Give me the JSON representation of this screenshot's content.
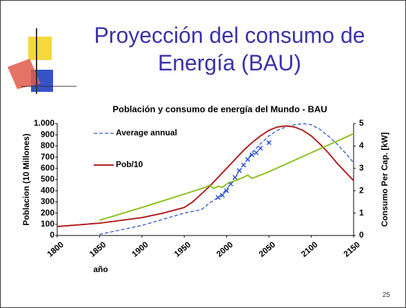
{
  "slide": {
    "title": "Proyección del consumo de Energía (BAU)",
    "page_number": "25"
  },
  "chart_data": {
    "type": "line",
    "title": "Población y consumo de energía del Mundo - BAU",
    "x_label": "año",
    "y_label": "Poblacion (10 Millones)",
    "y2_label": "Consumo Per Cap. [kW]",
    "xlim": [
      1800,
      2150
    ],
    "xticks": [
      1800,
      1850,
      1900,
      1950,
      2000,
      2050,
      2100,
      2150
    ],
    "ylim": [
      0,
      1000
    ],
    "yticks": [
      0,
      100,
      200,
      300,
      400,
      500,
      600,
      700,
      800,
      900,
      {
        "value": 1000,
        "label": "1.000"
      }
    ],
    "y2lim": [
      0,
      5
    ],
    "y2ticks": [
      0,
      1,
      2,
      3,
      4,
      5
    ],
    "legend": "upper-left",
    "series": [
      {
        "name": "Average annual",
        "color": "#2a4fd0",
        "dashed": true,
        "x": [
          1850,
          1900,
          1950,
          1970,
          1980,
          1990,
          2000,
          2010,
          2020,
          2030,
          2040,
          2050,
          2060,
          2070,
          2080,
          2090,
          2100,
          2110,
          2120,
          2130,
          2140,
          2150
        ],
        "values": [
          10,
          90,
          200,
          230,
          290,
          340,
          410,
          520,
          630,
          740,
          820,
          890,
          940,
          970,
          990,
          1000,
          990,
          950,
          890,
          820,
          740,
          650
        ]
      },
      {
        "name": "Pob/10",
        "color": "#b01c1c",
        "x": [
          1800,
          1850,
          1900,
          1925,
          1940,
          1950,
          1960,
          1970,
          1980,
          1990,
          2000,
          2010,
          2020,
          2030,
          2040,
          2050,
          2060,
          2070,
          2080,
          2090,
          2100,
          2110,
          2120,
          2130,
          2140,
          2150
        ],
        "values": [
          80,
          110,
          160,
          200,
          230,
          250,
          300,
          370,
          440,
          520,
          600,
          680,
          760,
          830,
          890,
          940,
          970,
          980,
          970,
          940,
          890,
          820,
          740,
          650,
          570,
          490
        ]
      },
      {
        "color": "#8cc11a",
        "axis": "y2",
        "x": [
          1850,
          1900,
          1950,
          1975,
          1980,
          1985,
          1990,
          1995,
          2000,
          2010,
          2020,
          2025,
          2030,
          2050,
          2100,
          2150
        ],
        "values": [
          0.68,
          1.25,
          1.85,
          2.15,
          2.25,
          2.1,
          2.2,
          2.15,
          2.3,
          2.45,
          2.6,
          2.7,
          2.55,
          2.85,
          3.7,
          4.55
        ]
      },
      {
        "color": "#2a4fd0",
        "marker": "x",
        "x": [
          1990,
          1995,
          2000,
          2005,
          2010,
          2015,
          2020,
          2025,
          2030,
          2035,
          2040,
          2050
        ],
        "values": [
          340,
          360,
          400,
          460,
          520,
          580,
          630,
          680,
          720,
          740,
          780,
          830
        ]
      }
    ]
  }
}
